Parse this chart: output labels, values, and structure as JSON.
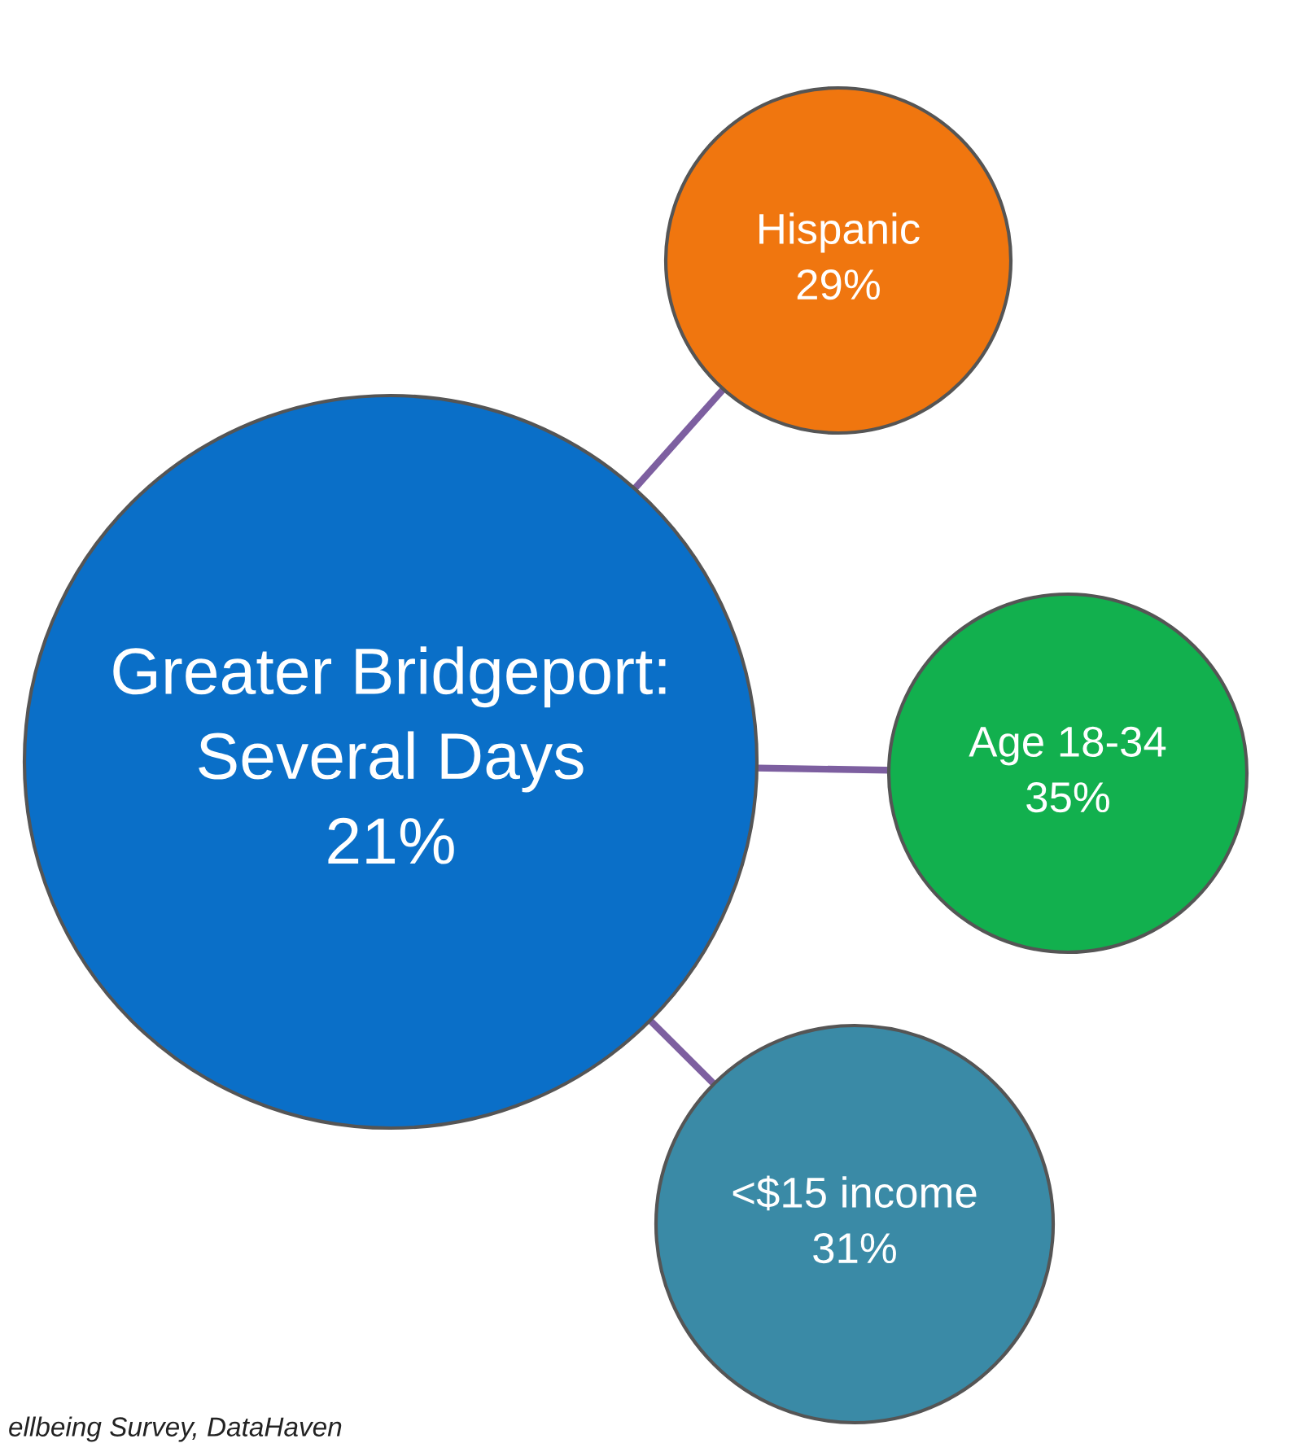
{
  "chart_data": {
    "type": "other",
    "categories": [
      "Greater Bridgeport:\nSeveral Days",
      "Hispanic",
      "Age 18-34",
      "<$15 income"
    ],
    "values": [
      21,
      29,
      35,
      31
    ],
    "value_labels": [
      "21%",
      "29%",
      "35%",
      "31%"
    ],
    "colors": [
      "#0a6fc8",
      "#f0760f",
      "#12b04e",
      "#3a8aa6"
    ],
    "annotations": [
      "ellbeing Survey, DataHaven"
    ]
  }
}
